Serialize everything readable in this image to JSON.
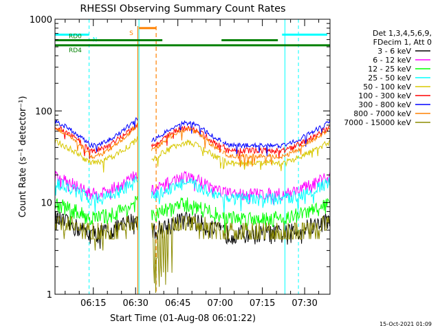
{
  "chart_data": {
    "type": "line",
    "title": "RHESSI Observing Summary Count Rates",
    "xlabel": "Start Time (01-Aug-08 06:01:22)",
    "ylabel": "Count Rate (s⁻¹ detector⁻¹)",
    "y_scale": "log",
    "ylim": [
      1,
      1000
    ],
    "y_ticks": [
      "1",
      "10",
      "100",
      "1000"
    ],
    "x_range_minutes_after_0600": [
      1.4,
      99
    ],
    "x_ticks": [
      "06:15",
      "06:30",
      "06:45",
      "07:00",
      "07:15",
      "07:30"
    ],
    "x_tick_minutes_after_0600": [
      15,
      30,
      45,
      60,
      75,
      90
    ],
    "grid": false,
    "legend_position": "right",
    "legend_header": [
      "Det 1,3,4,5,6,9,",
      "FDecim 1, Att 0"
    ],
    "series": [
      {
        "name": "3 - 6 keV",
        "color": "#000000",
        "base": 4.6,
        "hump": 2.2,
        "noise": 0.06
      },
      {
        "name": "6 - 12 keV",
        "color": "#ff00ff",
        "base": 12.5,
        "hump": 7.5,
        "noise": 0.04
      },
      {
        "name": "12 - 25 keV",
        "color": "#00ff00",
        "base": 6.8,
        "hump": 3.2,
        "noise": 0.05
      },
      {
        "name": "25 - 50 keV",
        "color": "#00ffff",
        "base": 11.0,
        "hump": 6.0,
        "noise": 0.04
      },
      {
        "name": "50 - 100 keV",
        "color": "#d8c800",
        "base": 27.0,
        "hump": 21.0,
        "noise": 0.02
      },
      {
        "name": "100 - 300 keV",
        "color": "#ff0000",
        "base": 37.0,
        "hump": 33.0,
        "noise": 0.018
      },
      {
        "name": "300 - 800 keV",
        "color": "#0000ff",
        "base": 42.0,
        "hump": 38.0,
        "noise": 0.015
      },
      {
        "name": "800 - 7000 keV",
        "color": "#ff8000",
        "base": 32.0,
        "hump": 36.0,
        "noise": 0.015
      },
      {
        "name": "7000 - 15000 keV",
        "color": "#8b8b00",
        "base": 4.6,
        "hump": 1.6,
        "noise": 0.0
      }
    ],
    "data_gaps_minutes": [
      [
        30.8,
        35.5
      ],
      [
        60.5,
        60.9
      ]
    ],
    "annotations": {
      "flags": [
        {
          "label": "N",
          "color": "#00ffff",
          "level": 680,
          "segments": [
            [
              1.4,
              13.5
            ],
            [
              82.0,
              98.0
            ]
          ]
        },
        {
          "label": "S",
          "color": "#ff8000",
          "level": 800,
          "segments": [
            [
              31.2,
              37.3
            ]
          ]
        },
        {
          "label": "RD0",
          "color": "#008000",
          "level": 590,
          "segments": [
            [
              1.4,
              39.5
            ],
            [
              60.5,
              80.5
            ]
          ]
        },
        {
          "label": "RD4",
          "color": "#008000",
          "level": 520,
          "segments": [
            [
              1.4,
              99.0
            ]
          ]
        }
      ],
      "cyan_dashed_vlines_minutes": [
        13.5,
        87.8,
        99.0
      ],
      "cyan_solid_vlines_minutes": [
        1.4,
        31.2,
        83.0
      ],
      "orange_vlines_minutes": [
        {
          "x": 30.8,
          "style": "solid"
        },
        {
          "x": 37.3,
          "style": "dashed"
        }
      ]
    }
  },
  "footer_timestamp": "15-Oct-2021 01:09"
}
